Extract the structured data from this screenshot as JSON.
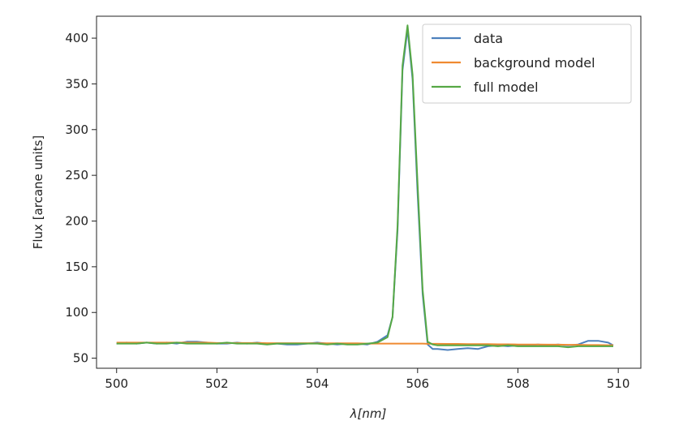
{
  "chart_data": {
    "type": "line",
    "xlabel": "λ[nm]",
    "ylabel": "Flux [arcane units]",
    "xlim": [
      499.6,
      510.45
    ],
    "ylim": [
      39,
      424
    ],
    "xticks": [
      500,
      502,
      504,
      506,
      508,
      510
    ],
    "yticks": [
      50,
      100,
      150,
      200,
      250,
      300,
      350,
      400
    ],
    "grid": false,
    "legend": {
      "placement": "top-right"
    },
    "x": [
      500.0,
      500.2,
      500.4,
      500.6,
      500.8,
      501.0,
      501.2,
      501.4,
      501.6,
      501.8,
      502.0,
      502.2,
      502.4,
      502.6,
      502.8,
      503.0,
      503.2,
      503.4,
      503.6,
      503.8,
      504.0,
      504.2,
      504.4,
      504.6,
      504.8,
      505.0,
      505.2,
      505.4,
      505.5,
      505.6,
      505.7,
      505.8,
      505.9,
      506.0,
      506.1,
      506.2,
      506.3,
      506.4,
      506.6,
      506.8,
      507.0,
      507.2,
      507.4,
      507.6,
      507.8,
      508.0,
      508.2,
      508.4,
      508.6,
      508.8,
      509.0,
      509.2,
      509.4,
      509.6,
      509.8,
      509.9
    ],
    "series": [
      {
        "name": "data",
        "color": "#4d81bd",
        "values": [
          66,
          67,
          66,
          67,
          66,
          67,
          66,
          68,
          68,
          67,
          66,
          66,
          67,
          66,
          67,
          66,
          66,
          65,
          65,
          66,
          67,
          66,
          65,
          66,
          66,
          65,
          68,
          75,
          95,
          190,
          365,
          410,
          355,
          230,
          120,
          65,
          60,
          60,
          59,
          60,
          61,
          60,
          63,
          64,
          63,
          64,
          64,
          65,
          64,
          65,
          64,
          65,
          69,
          69,
          67,
          64
        ]
      },
      {
        "name": "background model",
        "color": "#ef8a31",
        "values": [
          67,
          67,
          67,
          67,
          67,
          67,
          67,
          67,
          67,
          67,
          66.6,
          66.6,
          66.6,
          66.6,
          66.6,
          66.4,
          66.4,
          66.4,
          66.4,
          66.4,
          66.2,
          66.2,
          66.2,
          66.2,
          66.2,
          66,
          66,
          66,
          66,
          66,
          66,
          66,
          66,
          66,
          66,
          65.7,
          65.7,
          65.7,
          65.6,
          65.6,
          65.4,
          65.4,
          65.4,
          65.2,
          65.2,
          65,
          65,
          65,
          64.8,
          64.8,
          64.6,
          64.6,
          64.4,
          64.4,
          64.2,
          64.2
        ]
      },
      {
        "name": "full model",
        "color": "#56a845",
        "values": [
          66,
          66,
          66,
          67,
          66,
          66,
          67,
          66,
          66,
          66,
          66,
          67,
          66,
          66,
          66,
          65,
          66,
          66,
          66,
          66,
          66,
          65,
          66,
          65,
          65,
          66,
          67,
          73,
          95,
          195,
          370,
          414,
          360,
          240,
          125,
          68,
          65,
          64,
          64,
          64,
          64,
          64,
          64,
          63,
          64,
          63,
          63,
          63,
          63,
          63,
          62,
          63,
          63,
          63,
          63,
          63
        ]
      }
    ]
  }
}
